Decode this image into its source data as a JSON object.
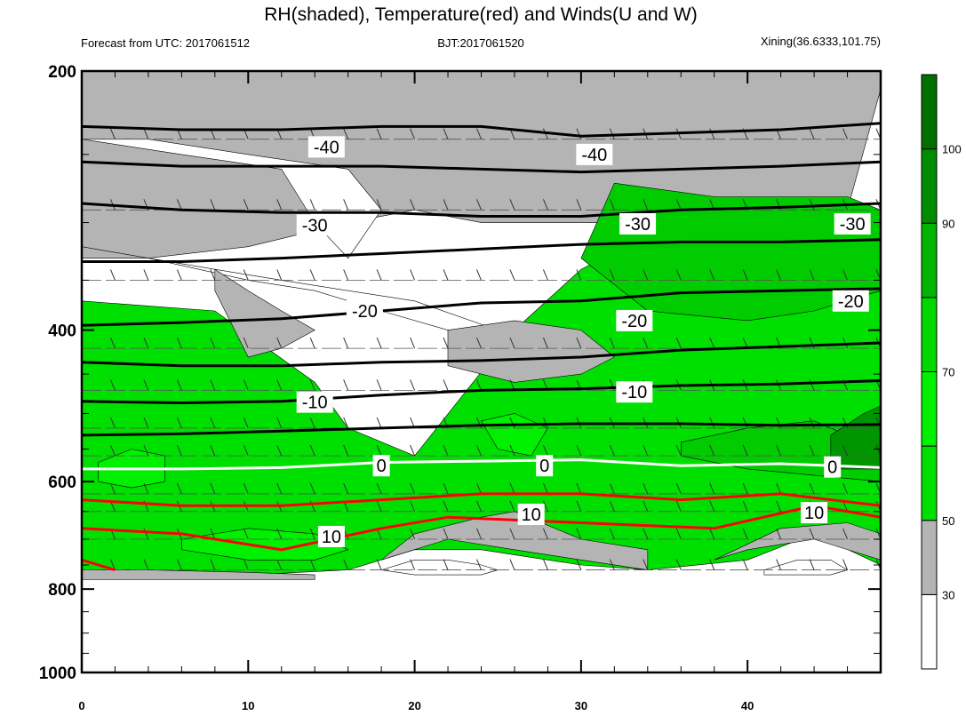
{
  "chart_data": {
    "type": "heatmap",
    "title": "RH(shaded), Temperature(red) and Winds(U and W)",
    "subtitle_left": "Forecast from UTC: 2017061512",
    "subtitle_center": "BJT:2017061520",
    "subtitle_right": "Xining(36.6333,101.75)",
    "xlabel": "",
    "ylabel": "",
    "xlim": [
      0,
      48
    ],
    "ylim": [
      1000,
      200
    ],
    "x_ticks": [
      0,
      10,
      20,
      30,
      40
    ],
    "y_ticks": [
      200,
      400,
      600,
      800,
      1000
    ],
    "y_scale": "log-pressure",
    "grid": false,
    "colorbar": {
      "placement": "right",
      "levels": [
        "30",
        "50",
        "70",
        "90",
        "100"
      ],
      "colors": [
        "#ffffff",
        "#b4b4b4",
        "#00e000",
        "#00f000",
        "#00d800",
        "#00b400",
        "#008c00",
        "#007000"
      ]
    },
    "rh_regions": [
      {
        "level": "gray",
        "color": "#b4b4b4",
        "x": [
          0,
          0,
          4,
          10,
          16,
          20,
          24,
          30,
          34,
          40,
          44,
          46,
          48,
          48,
          40,
          34,
          30,
          26,
          20,
          14,
          8,
          0
        ],
        "p": [
          780,
          330,
          330,
          320,
          300,
          290,
          300,
          300,
          300,
          310,
          300,
          290,
          210,
          200,
          200,
          200,
          200,
          200,
          200,
          200,
          200,
          200
        ]
      },
      {
        "level": "green",
        "color": "#00e000",
        "x": [
          0,
          0,
          8,
          14,
          16,
          20,
          26,
          30,
          34,
          40,
          44,
          48,
          48,
          44,
          40,
          34,
          30,
          26,
          24,
          20,
          16,
          10,
          0
        ],
        "p": [
          770,
          370,
          380,
          460,
          520,
          560,
          400,
          340,
          310,
          320,
          330,
          330,
          750,
          690,
          740,
          760,
          750,
          730,
          720,
          720,
          760,
          770,
          770
        ]
      },
      {
        "level": "white",
        "color": "#ffffff",
        "x": [
          0,
          4,
          8,
          12,
          16,
          20,
          25,
          26,
          22,
          18,
          14,
          10,
          4,
          0
        ],
        "p": [
          320,
          330,
          340,
          350,
          360,
          370,
          400,
          420,
          400,
          380,
          360,
          350,
          330,
          320
        ]
      },
      {
        "level": "white",
        "color": "#ffffff",
        "x": [
          0,
          6,
          12,
          14,
          16,
          18,
          16,
          10,
          4,
          0
        ],
        "p": [
          240,
          250,
          260,
          300,
          330,
          290,
          260,
          250,
          240,
          240
        ]
      },
      {
        "level": "white",
        "color": "#ffffff",
        "x": [
          18,
          20,
          22,
          24,
          25,
          24,
          22,
          20,
          18
        ],
        "p": [
          760,
          740,
          740,
          750,
          760,
          770,
          770,
          770,
          760
        ]
      },
      {
        "level": "white",
        "color": "#ffffff",
        "x": [
          41,
          43,
          45,
          46,
          45,
          43,
          41
        ],
        "p": [
          760,
          740,
          740,
          760,
          770,
          770,
          770
        ]
      },
      {
        "level": "gray",
        "color": "#b4b4b4",
        "x": [
          18,
          20,
          24,
          26,
          30,
          34,
          34,
          30,
          26,
          22,
          18
        ],
        "p": [
          740,
          690,
          660,
          650,
          700,
          720,
          760,
          740,
          720,
          700,
          740
        ]
      },
      {
        "level": "gray",
        "color": "#b4b4b4",
        "x": [
          38,
          42,
          46,
          48,
          48,
          44,
          40,
          38
        ],
        "p": [
          740,
          680,
          670,
          690,
          740,
          700,
          720,
          740
        ]
      },
      {
        "level": "gray",
        "color": "#b4b4b4",
        "x": [
          0,
          4,
          10,
          14,
          14,
          10,
          4,
          0
        ],
        "p": [
          760,
          760,
          765,
          770,
          780,
          780,
          780,
          780
        ]
      },
      {
        "level": "gray",
        "color": "#b4b4b4",
        "x": [
          8,
          10,
          12,
          14,
          12,
          10,
          8
        ],
        "p": [
          340,
          360,
          380,
          400,
          420,
          430,
          360
        ]
      },
      {
        "level": "gray",
        "color": "#b4b4b4",
        "x": [
          22,
          26,
          30,
          32,
          30,
          26,
          22
        ],
        "p": [
          400,
          390,
          400,
          430,
          450,
          460,
          440
        ]
      },
      {
        "level": "gray",
        "color": "#b4b4b4",
        "x": [
          36,
          40,
          42,
          40,
          36,
          34
        ],
        "p": [
          320,
          300,
          340,
          380,
          380,
          350
        ]
      },
      {
        "level": "green-mid",
        "color": "#00cc00",
        "x": [
          32,
          38,
          46,
          48,
          48,
          44,
          40,
          34,
          30
        ],
        "p": [
          270,
          280,
          280,
          290,
          360,
          380,
          390,
          380,
          330
        ]
      },
      {
        "level": "green-mid",
        "color": "#00cc00",
        "x": [
          36,
          40,
          44,
          46,
          48,
          48,
          44,
          40,
          36
        ],
        "p": [
          540,
          520,
          510,
          530,
          520,
          600,
          590,
          580,
          560
        ]
      },
      {
        "level": "green-bright",
        "color": "#00f000",
        "x": [
          6,
          10,
          14,
          16,
          14,
          10,
          6
        ],
        "p": [
          700,
          680,
          690,
          720,
          740,
          740,
          720
        ]
      },
      {
        "level": "green-bright",
        "color": "#00f000",
        "x": [
          1,
          3,
          5,
          5,
          3,
          1
        ],
        "p": [
          570,
          550,
          560,
          600,
          610,
          600
        ]
      },
      {
        "level": "green-bright",
        "color": "#00f000",
        "x": [
          24,
          26,
          28,
          27,
          25
        ],
        "p": [
          510,
          500,
          520,
          560,
          550
        ]
      },
      {
        "level": "green-dark",
        "color": "#009600",
        "x": [
          45,
          47,
          48,
          48,
          45
        ],
        "p": [
          530,
          500,
          490,
          580,
          580
        ]
      }
    ],
    "temperature_contours": [
      {
        "value": -40,
        "color": "#000000",
        "label": "-40",
        "x": [
          0,
          6,
          12,
          18,
          24,
          30,
          36,
          42,
          48
        ],
        "p": [
          232,
          234,
          234,
          232,
          232,
          238,
          236,
          234,
          230
        ]
      },
      {
        "value": -35,
        "color": "#000000",
        "label": "",
        "x": [
          0,
          6,
          12,
          18,
          24,
          30,
          36,
          42,
          48
        ],
        "p": [
          255,
          258,
          258,
          258,
          260,
          262,
          260,
          258,
          255
        ]
      },
      {
        "value": -30,
        "color": "#000000",
        "label": "-30",
        "x": [
          0,
          6,
          12,
          18,
          24,
          30,
          36,
          42,
          48
        ],
        "p": [
          285,
          290,
          292,
          292,
          295,
          295,
          290,
          288,
          285
        ]
      },
      {
        "value": -25,
        "color": "#000000",
        "label": "",
        "x": [
          0,
          6,
          12,
          18,
          24,
          30,
          36,
          42,
          48
        ],
        "p": [
          333,
          333,
          330,
          326,
          322,
          318,
          316,
          316,
          314
        ]
      },
      {
        "value": -20,
        "color": "#000000",
        "label": "-20",
        "x": [
          0,
          6,
          12,
          18,
          24,
          30,
          36,
          42,
          48
        ],
        "p": [
          395,
          392,
          388,
          380,
          372,
          370,
          362,
          360,
          358
        ]
      },
      {
        "value": -15,
        "color": "#000000",
        "label": "",
        "x": [
          0,
          6,
          12,
          18,
          24,
          30,
          36,
          42,
          48
        ],
        "p": [
          436,
          440,
          440,
          436,
          434,
          430,
          422,
          418,
          414
        ]
      },
      {
        "value": -10,
        "color": "#000000",
        "label": "-10",
        "x": [
          0,
          6,
          12,
          18,
          24,
          30,
          36,
          42,
          48
        ],
        "p": [
          484,
          486,
          484,
          476,
          470,
          468,
          464,
          462,
          458
        ]
      },
      {
        "value": -5,
        "color": "#000000",
        "label": "",
        "x": [
          0,
          6,
          12,
          18,
          24,
          30,
          36,
          42,
          48
        ],
        "p": [
          530,
          528,
          524,
          520,
          516,
          514,
          514,
          516,
          515
        ]
      },
      {
        "value": 0,
        "color": "#ffffff",
        "label": "0",
        "x": [
          0,
          6,
          12,
          18,
          24,
          30,
          36,
          42,
          48
        ],
        "p": [
          580,
          580,
          578,
          570,
          568,
          566,
          575,
          572,
          578
        ]
      },
      {
        "value": 5,
        "color": "#ff0000",
        "label": "",
        "x": [
          0,
          6,
          12,
          18,
          24,
          30,
          36,
          42,
          48
        ],
        "p": [
          630,
          640,
          640,
          630,
          620,
          620,
          630,
          620,
          640
        ]
      },
      {
        "value": 10,
        "color": "#ff0000",
        "label": "10",
        "x": [
          0,
          6,
          12,
          18,
          22,
          30,
          38,
          44,
          48
        ],
        "p": [
          680,
          690,
          720,
          680,
          660,
          670,
          680,
          640,
          660
        ]
      },
      {
        "value": 15,
        "color": "#ff0000",
        "label": "",
        "x": [
          0,
          2
        ],
        "p": [
          740,
          760
        ]
      }
    ],
    "temperature_labels": [
      {
        "text": "-40",
        "x": 14.7,
        "p": 245
      },
      {
        "text": "-40",
        "x": 30.8,
        "p": 250
      },
      {
        "text": "-30",
        "x": 14.0,
        "p": 302
      },
      {
        "text": "-30",
        "x": 33.4,
        "p": 301
      },
      {
        "text": "-30",
        "x": 46.3,
        "p": 301
      },
      {
        "text": "-20",
        "x": 17.0,
        "p": 380
      },
      {
        "text": "-20",
        "x": 33.2,
        "p": 390
      },
      {
        "text": "-20",
        "x": 46.2,
        "p": 370
      },
      {
        "text": "-10",
        "x": 14.0,
        "p": 485
      },
      {
        "text": "-10",
        "x": 33.2,
        "p": 472
      },
      {
        "text": "0",
        "x": 18.0,
        "p": 575
      },
      {
        "text": "0",
        "x": 27.8,
        "p": 575
      },
      {
        "text": "0",
        "x": 45.1,
        "p": 577
      },
      {
        "text": "10",
        "x": 15.0,
        "p": 695
      },
      {
        "text": "10",
        "x": 27.0,
        "p": 655
      },
      {
        "text": "10",
        "x": 44.0,
        "p": 652
      }
    ],
    "wind_levels_p": [
      240,
      290,
      350,
      420,
      470,
      520,
      560,
      620,
      650,
      700,
      760
    ],
    "wind_x_step": 2
  }
}
